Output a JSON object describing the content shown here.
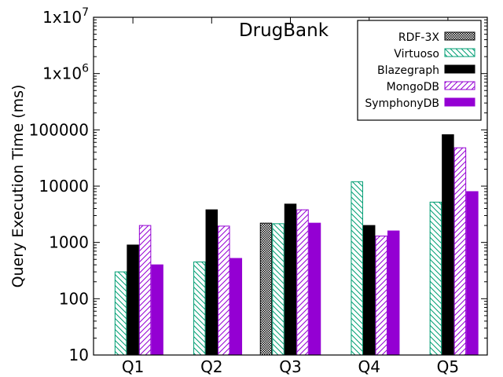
{
  "chart_data": {
    "type": "bar",
    "title": "DrugBank",
    "xlabel": "",
    "ylabel": "Query Execution Time (ms)",
    "yscale": "log",
    "ylim": [
      10,
      10000000
    ],
    "yticks": [
      {
        "value": 10,
        "label": "10"
      },
      {
        "value": 100,
        "label": "100"
      },
      {
        "value": 1000,
        "label": "1000"
      },
      {
        "value": 10000,
        "label": "10000"
      },
      {
        "value": 100000,
        "label": "100000"
      },
      {
        "value": 1000000,
        "label": "1x10",
        "exp": "6"
      },
      {
        "value": 10000000,
        "label": "1x10",
        "exp": "7"
      }
    ],
    "categories": [
      "Q1",
      "Q2",
      "Q3",
      "Q4",
      "Q5"
    ],
    "legend_position": "top-right",
    "grid": false,
    "series": [
      {
        "name": "RDF-3X",
        "color": "#000000",
        "pattern": "crosshatch",
        "values": [
          null,
          null,
          2200,
          null,
          null
        ]
      },
      {
        "name": "Virtuoso",
        "color": "#009e73",
        "pattern": "hatch-down",
        "values": [
          300,
          450,
          2150,
          12000,
          5200
        ]
      },
      {
        "name": "Blazegraph",
        "color": "#000000",
        "pattern": "solid",
        "values": [
          900,
          3800,
          4800,
          2000,
          82000
        ]
      },
      {
        "name": "MongoDB",
        "color": "#9400d3",
        "pattern": "hatch-up",
        "values": [
          2000,
          1950,
          3800,
          1300,
          48000
        ]
      },
      {
        "name": "SymphonyDB",
        "color": "#9400d3",
        "pattern": "solid",
        "values": [
          400,
          520,
          2200,
          1600,
          8000
        ]
      }
    ]
  }
}
